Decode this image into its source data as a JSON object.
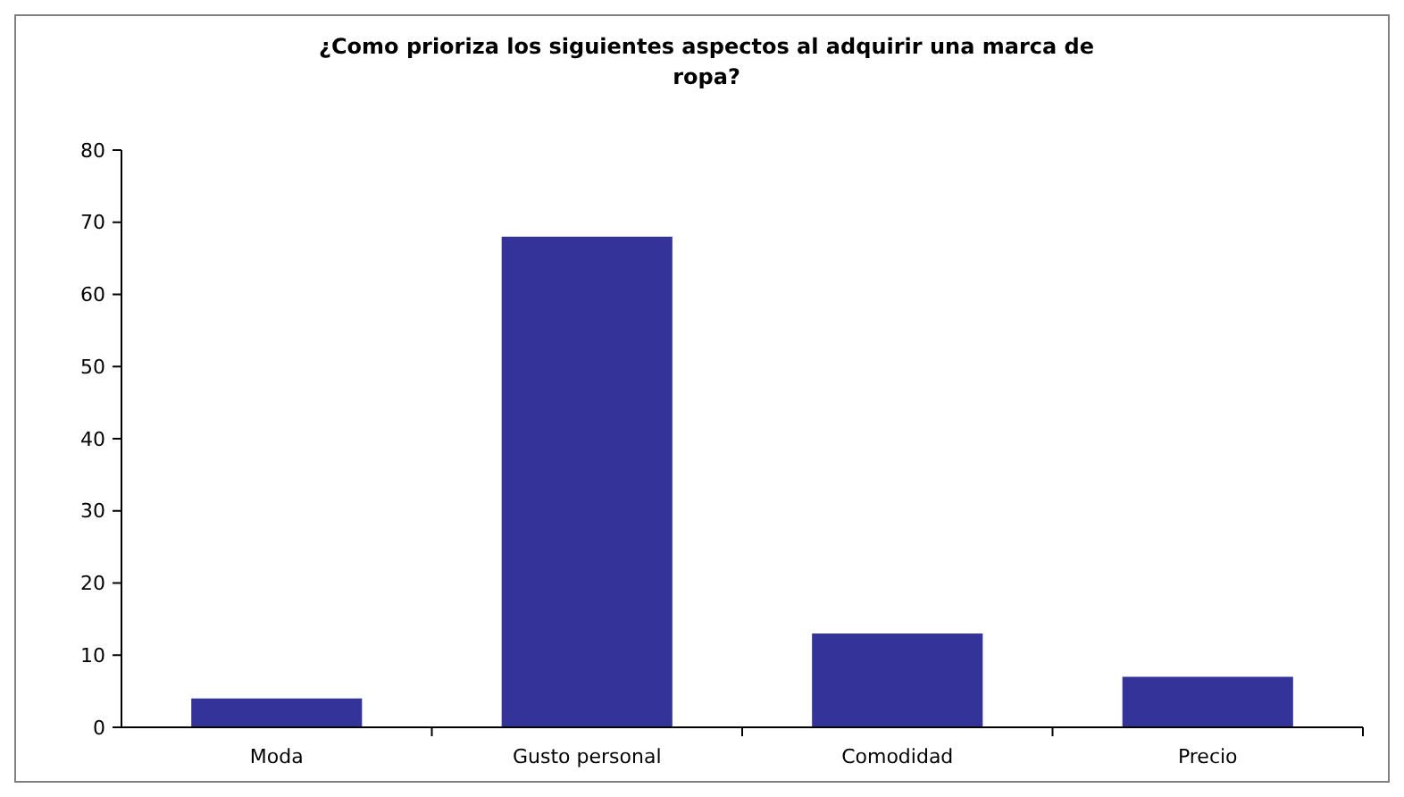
{
  "chart_data": {
    "type": "bar",
    "title": "¿Como prioriza los siguientes aspectos al adquirir una marca de ropa?",
    "categories": [
      "Moda",
      "Gusto personal",
      "Comodidad",
      "Precio"
    ],
    "values": [
      4,
      68,
      13,
      7
    ],
    "color": "#333399",
    "ylim": [
      0,
      80
    ],
    "yticks": [
      0,
      10,
      20,
      30,
      40,
      50,
      60,
      70,
      80
    ],
    "grid": false
  }
}
